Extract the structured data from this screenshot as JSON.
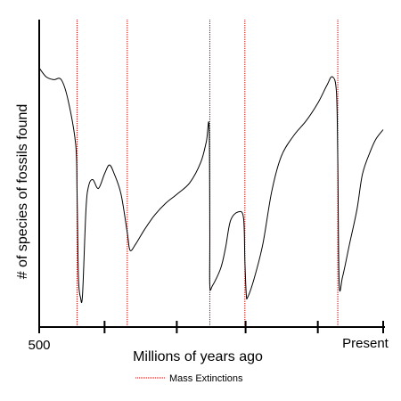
{
  "chart_data": {
    "type": "line",
    "title": "",
    "xlabel": "Millions of years ago",
    "ylabel": "# of species of fossils found",
    "x_tick_labels": {
      "left": "500",
      "right": "Present"
    },
    "xlim": [
      500,
      0
    ],
    "x_ticks": [
      500,
      405,
      300,
      200,
      95,
      0
    ],
    "grid": false,
    "legend": {
      "placement": "bottom-center",
      "entries": [
        {
          "name": "Mass Extinctions",
          "style": "dotted",
          "color": "#cc0000"
        }
      ]
    },
    "extinctions": [
      445,
      372,
      252,
      201,
      66
    ],
    "series": [
      {
        "style": "solid",
        "color": "#000000",
        "points": [
          [
            500,
            0.86
          ],
          [
            490,
            0.83
          ],
          [
            479,
            0.82
          ],
          [
            468,
            0.82
          ],
          [
            458,
            0.75
          ],
          [
            447,
            0.6
          ],
          [
            445,
            0.44
          ],
          [
            443,
            0.15
          ],
          [
            440,
            0.08
          ],
          [
            437,
            0.09
          ],
          [
            432,
            0.38
          ],
          [
            428,
            0.46
          ],
          [
            422,
            0.48
          ],
          [
            414,
            0.45
          ],
          [
            405,
            0.5
          ],
          [
            398,
            0.53
          ],
          [
            391,
            0.5
          ],
          [
            381,
            0.43
          ],
          [
            372,
            0.3
          ],
          [
            368,
            0.24
          ],
          [
            360,
            0.26
          ],
          [
            347,
            0.31
          ],
          [
            332,
            0.36
          ],
          [
            316,
            0.4
          ],
          [
            300,
            0.43
          ],
          [
            281,
            0.47
          ],
          [
            265,
            0.54
          ],
          [
            257,
            0.61
          ],
          [
            253,
            0.66
          ],
          [
            252,
            0.3
          ],
          [
            252,
            0.12
          ],
          [
            248,
            0.12
          ],
          [
            236,
            0.18
          ],
          [
            229,
            0.25
          ],
          [
            222,
            0.34
          ],
          [
            211,
            0.37
          ],
          [
            203,
            0.35
          ],
          [
            201,
            0.2
          ],
          [
            199,
            0.09
          ],
          [
            197,
            0.08
          ],
          [
            188,
            0.14
          ],
          [
            175,
            0.26
          ],
          [
            162,
            0.44
          ],
          [
            148,
            0.56
          ],
          [
            130,
            0.63
          ],
          [
            112,
            0.68
          ],
          [
            95,
            0.74
          ],
          [
            82,
            0.8
          ],
          [
            74,
            0.83
          ],
          [
            68,
            0.78
          ],
          [
            66,
            0.55
          ],
          [
            64,
            0.13
          ],
          [
            59,
            0.15
          ],
          [
            49,
            0.26
          ],
          [
            38,
            0.38
          ],
          [
            30,
            0.5
          ],
          [
            18,
            0.58
          ],
          [
            10,
            0.62
          ],
          [
            0,
            0.65
          ]
        ]
      }
    ]
  }
}
